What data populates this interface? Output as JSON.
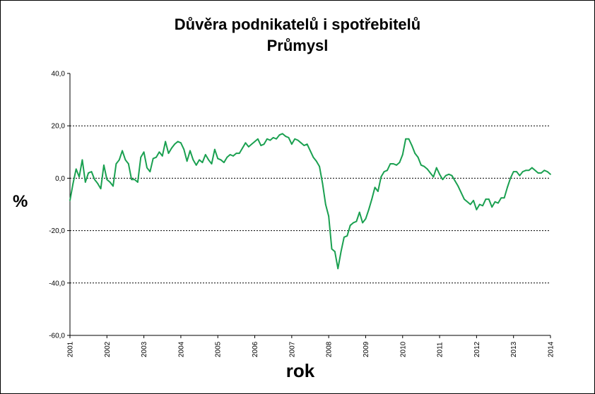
{
  "chart_data": {
    "type": "line",
    "title_lines": [
      "Důvěra podnikatelů i spotřebitelů",
      "Průmysl"
    ],
    "xlabel": "rok",
    "ylabel": "%",
    "ylim": [
      -60,
      40
    ],
    "y_ticks": [
      "40,0",
      "20,0",
      "0,0",
      "-20,0",
      "-40,0",
      "-60,0"
    ],
    "x_ticks": [
      "2001",
      "2002",
      "2003",
      "2004",
      "2005",
      "2006",
      "2007",
      "2008",
      "2009",
      "2010",
      "2011",
      "2012",
      "2013",
      "2014"
    ],
    "grid": "horizontal dashed at 20, 0, -20, -40",
    "legend": "none",
    "series_color": "#1aa050",
    "series": [
      {
        "values": [
          -8.5,
          -2.0,
          3.5,
          0.5,
          7.0,
          -1.5,
          2.0,
          2.5,
          -0.5,
          -2.0,
          -4.0,
          5.0,
          -0.5,
          -1.5,
          -3.0,
          5.5,
          7.0,
          10.5,
          7.0,
          5.5,
          -0.5,
          -0.5,
          -1.5,
          8.0,
          10.0,
          4.0,
          2.5,
          7.5,
          8.0,
          10.0,
          8.5,
          14.0,
          9.5,
          11.5,
          13.0,
          14.0,
          13.5,
          11.0,
          6.5,
          10.5,
          7.0,
          5.0,
          7.0,
          6.0,
          9.0,
          7.0,
          5.5,
          11.0,
          7.5,
          7.0,
          6.0,
          8.0,
          9.0,
          8.5,
          9.5,
          9.5,
          11.5,
          13.5,
          12.0,
          13.0,
          14.0,
          15.0,
          12.5,
          13.0,
          15.0,
          14.5,
          15.5,
          15.0,
          16.5,
          17.0,
          16.0,
          15.5,
          13.0,
          15.0,
          14.5,
          13.5,
          12.5,
          13.0,
          10.5,
          8.0,
          6.5,
          4.5,
          -2.0,
          -10.0,
          -14.5,
          -27.0,
          -28.0,
          -34.5,
          -28.0,
          -22.5,
          -22.0,
          -18.0,
          -17.0,
          -16.5,
          -13.0,
          -17.0,
          -15.5,
          -12.0,
          -8.0,
          -3.5,
          -5.0,
          0.5,
          2.5,
          3.0,
          5.5,
          5.5,
          5.0,
          6.0,
          9.0,
          15.0,
          15.0,
          12.5,
          9.5,
          8.0,
          5.0,
          4.5,
          3.5,
          2.0,
          0.5,
          4.0,
          1.5,
          -0.5,
          1.0,
          1.5,
          1.0,
          -1.0,
          -3.0,
          -5.5,
          -8.0,
          -9.0,
          -10.0,
          -8.5,
          -12.0,
          -10.0,
          -10.5,
          -8.0,
          -8.0,
          -11.0,
          -9.0,
          -9.5,
          -7.5,
          -7.5,
          -3.5,
          0.0,
          2.5,
          2.5,
          1.0,
          2.5,
          3.0,
          3.0,
          4.0,
          3.0,
          2.0,
          2.0,
          3.0,
          2.5,
          1.5
        ]
      }
    ]
  }
}
